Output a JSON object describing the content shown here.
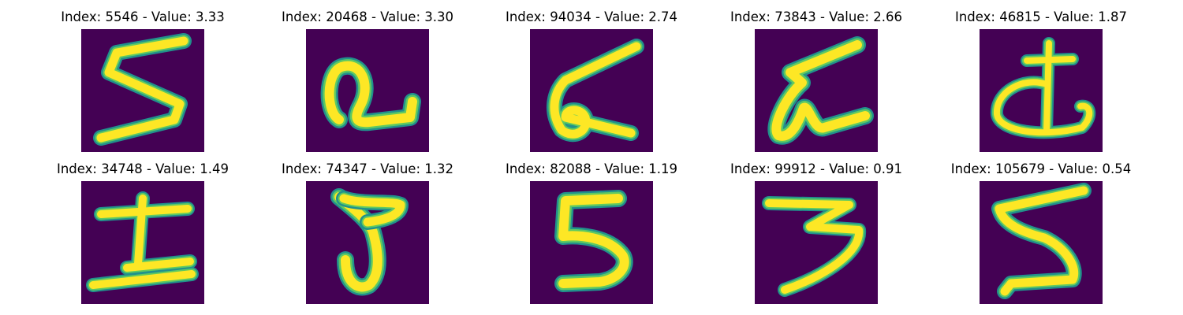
{
  "colors": {
    "background": "#440154",
    "stroke_edge": "#21918c",
    "stroke_mid": "#5ec962",
    "stroke_core": "#fde725"
  },
  "tiles": [
    {
      "title": "Index: 5546 - Value: 3.33",
      "glyph": "digit-5-icon"
    },
    {
      "title": "Index: 20468 - Value: 3.30",
      "glyph": "loop-glyph-icon"
    },
    {
      "title": "Index: 94034 - Value: 2.74",
      "glyph": "six-like-glyph-icon"
    },
    {
      "title": "Index: 73843 - Value: 2.66",
      "glyph": "six-like-glyph-icon"
    },
    {
      "title": "Index: 46815 - Value: 1.87",
      "glyph": "circle-cross-glyph-icon"
    },
    {
      "title": "Index: 34748 - Value: 1.49",
      "glyph": "cross-glyph-icon"
    },
    {
      "title": "Index: 74347 - Value: 1.32",
      "glyph": "hook-glyph-icon"
    },
    {
      "title": "Index: 82088 - Value: 1.19",
      "glyph": "digit-5-icon"
    },
    {
      "title": "Index: 99912 - Value: 0.91",
      "glyph": "digit-3-icon"
    },
    {
      "title": "Index: 105679 - Value: 0.54",
      "glyph": "digit-5-icon"
    }
  ]
}
